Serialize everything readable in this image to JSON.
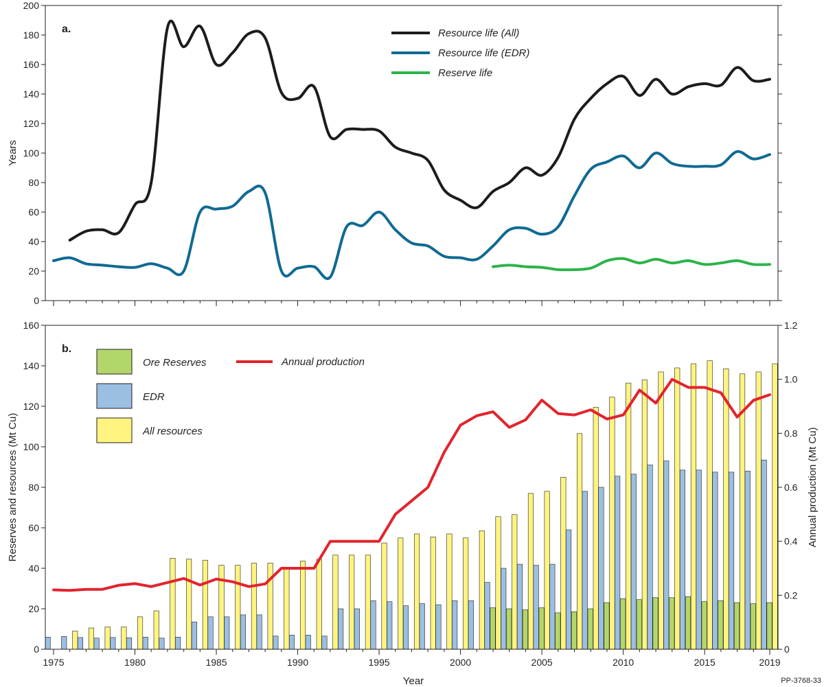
{
  "credit": "PP-3768-33",
  "panels": [
    {
      "tag": "a.",
      "ylabel": "Years",
      "ylim": [
        0,
        200
      ],
      "yticks": [
        0,
        20,
        40,
        60,
        80,
        100,
        120,
        140,
        160,
        180,
        200
      ],
      "legend": [
        {
          "label": "Resource life (All)",
          "color": "#1c1c1c"
        },
        {
          "label": "Resource life (EDR)",
          "color": "#0f6a93"
        },
        {
          "label": "Reserve life",
          "color": "#2db34a"
        }
      ]
    },
    {
      "tag": "b.",
      "ylabel": "Reserves and resources (Mt Cu)",
      "y2label": "Annual production (Mt Cu)",
      "ylim": [
        0,
        160
      ],
      "yticks": [
        0,
        20,
        40,
        60,
        80,
        100,
        120,
        140,
        160
      ],
      "y2lim": [
        0,
        1.2
      ],
      "y2ticks": [
        "0",
        "0.2",
        "0.4",
        "0.6",
        "0.8",
        "1.0",
        "1.2"
      ],
      "legend_bars": [
        {
          "label": "Ore Reserves",
          "color": "#b3d66a"
        },
        {
          "label": "EDR",
          "color": "#9bbfe3"
        },
        {
          "label": "All resources",
          "color": "#fff47f"
        }
      ],
      "legend_line": {
        "label": "Annual production",
        "color": "#e3232c"
      }
    }
  ],
  "x_axis": {
    "label": "Year",
    "xlim": [
      1975,
      2019
    ],
    "ticks": [
      "1975",
      "1980",
      "1985",
      "1990",
      "1995",
      "2000",
      "2005",
      "2010",
      "2015",
      "2019"
    ]
  },
  "chart_data": [
    {
      "type": "line",
      "title": "a.",
      "xlabel": "Year",
      "ylabel": "Years",
      "xlim": [
        1975,
        2019
      ],
      "ylim": [
        0,
        200
      ],
      "series": [
        {
          "name": "Resource life (All)",
          "color": "#1c1c1c",
          "x": [
            1976,
            1977,
            1978,
            1979,
            1980,
            1981,
            1982,
            1983,
            1984,
            1985,
            1986,
            1987,
            1988,
            1989,
            1990,
            1991,
            1992,
            1993,
            1994,
            1995,
            1996,
            1997,
            1998,
            1999,
            2000,
            2001,
            2002,
            2003,
            2004,
            2005,
            2006,
            2007,
            2008,
            2009,
            2010,
            2011,
            2012,
            2013,
            2014,
            2015,
            2016,
            2017,
            2018,
            2019
          ],
          "y": [
            41,
            47,
            48,
            46,
            65,
            80,
            185,
            172,
            186,
            160,
            168,
            181,
            178,
            141,
            137,
            145,
            111,
            116,
            116,
            115,
            104,
            100,
            95,
            75,
            68,
            63,
            74,
            80,
            90,
            85,
            97,
            123,
            137,
            147,
            152,
            139,
            150,
            140,
            145,
            147,
            146,
            158,
            149,
            150
          ]
        },
        {
          "name": "Resource life (EDR)",
          "color": "#0f6a93",
          "x": [
            1975,
            1976,
            1977,
            1978,
            1979,
            1980,
            1981,
            1982,
            1983,
            1984,
            1985,
            1986,
            1987,
            1988,
            1989,
            1990,
            1991,
            1992,
            1993,
            1994,
            1995,
            1996,
            1997,
            1998,
            1999,
            2000,
            2001,
            2002,
            2003,
            2004,
            2005,
            2006,
            2007,
            2008,
            2009,
            2010,
            2011,
            2012,
            2013,
            2014,
            2015,
            2016,
            2017,
            2018,
            2019
          ],
          "y": [
            27,
            29,
            25,
            24,
            23,
            22.5,
            25,
            22,
            20,
            60,
            62,
            64,
            74,
            73,
            20,
            22,
            23,
            16,
            50,
            51,
            60,
            48,
            39,
            37,
            30,
            29,
            28,
            37,
            48,
            49,
            45,
            50,
            71,
            89,
            94,
            98,
            90,
            100,
            93,
            91,
            91,
            92,
            101,
            96,
            99
          ]
        },
        {
          "name": "Reserve life",
          "color": "#2db34a",
          "x": [
            2002,
            2003,
            2004,
            2005,
            2006,
            2007,
            2008,
            2009,
            2010,
            2011,
            2012,
            2013,
            2014,
            2015,
            2016,
            2017,
            2018,
            2019
          ],
          "y": [
            23,
            24,
            23,
            22.5,
            21,
            21,
            22,
            27,
            28.5,
            25.5,
            28,
            25.5,
            27,
            24.5,
            25.5,
            27,
            24.5,
            24.5
          ]
        }
      ]
    },
    {
      "type": "bar",
      "title": "b.",
      "xlabel": "Year",
      "ylabel": "Reserves and resources (Mt Cu)",
      "y2label": "Annual production (Mt Cu)",
      "xlim": [
        1975,
        2019
      ],
      "ylim": [
        0,
        160
      ],
      "y2lim": [
        0,
        1.2
      ],
      "categories": [
        1975,
        1976,
        1977,
        1978,
        1979,
        1980,
        1981,
        1982,
        1983,
        1984,
        1985,
        1986,
        1987,
        1988,
        1989,
        1990,
        1991,
        1992,
        1993,
        1994,
        1995,
        1996,
        1997,
        1998,
        1999,
        2000,
        2001,
        2002,
        2003,
        2004,
        2005,
        2006,
        2007,
        2008,
        2009,
        2010,
        2011,
        2012,
        2013,
        2014,
        2015,
        2016,
        2017,
        2018,
        2019
      ],
      "series": [
        {
          "name": "Ore Reserves",
          "color": "#b3d66a",
          "values": [
            null,
            null,
            null,
            null,
            null,
            null,
            null,
            null,
            null,
            null,
            null,
            null,
            null,
            null,
            null,
            null,
            null,
            null,
            null,
            null,
            null,
            null,
            null,
            null,
            null,
            null,
            null,
            20.5,
            20,
            19.5,
            20.5,
            18,
            18.5,
            20,
            23,
            25,
            24.5,
            25.5,
            25.5,
            26,
            23.5,
            24,
            23,
            22.5,
            23
          ]
        },
        {
          "name": "EDR",
          "color": "#9bbfe3",
          "values": [
            6,
            6.3,
            5.8,
            5.5,
            5.8,
            5.7,
            6,
            5.5,
            6,
            13.5,
            16,
            16,
            17,
            17,
            6.5,
            7,
            7,
            6.5,
            20,
            20,
            24,
            23.5,
            21.5,
            22.5,
            22,
            24,
            24,
            33,
            40,
            42,
            41.5,
            42,
            59,
            78,
            80,
            85.5,
            86.5,
            91,
            93,
            88.5,
            88.5,
            87.5,
            87.5,
            88,
            93.5
          ]
        },
        {
          "name": "All resources",
          "color": "#fff47f",
          "values": [
            null,
            9,
            10.5,
            11,
            11,
            16,
            19,
            45,
            44.5,
            44,
            41.5,
            41.5,
            42.5,
            42.5,
            40.5,
            43.5,
            44.5,
            46.5,
            46.5,
            46.5,
            52.5,
            55,
            57,
            55.5,
            57,
            55,
            58.5,
            65.5,
            66.5,
            77,
            78,
            85,
            106.5,
            119.5,
            124.5,
            131.5,
            133,
            137,
            139,
            141,
            142.5,
            138.5,
            136,
            137,
            141
          ]
        },
        {
          "name": "Annual production",
          "type": "line",
          "axis": "y2",
          "color": "#e3232c",
          "values": [
            0.22,
            0.218,
            0.222,
            0.222,
            0.237,
            0.243,
            0.232,
            0.247,
            0.262,
            0.238,
            0.26,
            0.25,
            0.232,
            0.242,
            0.3,
            0.3,
            0.3,
            0.4,
            0.4,
            0.4,
            0.4,
            0.5,
            0.55,
            0.6,
            0.73,
            0.83,
            0.865,
            0.88,
            0.822,
            0.85,
            0.923,
            0.873,
            0.868,
            0.887,
            0.853,
            0.868,
            0.96,
            0.912,
            1.0,
            0.97,
            0.97,
            0.95,
            0.86,
            0.922,
            0.943
          ]
        }
      ]
    }
  ]
}
